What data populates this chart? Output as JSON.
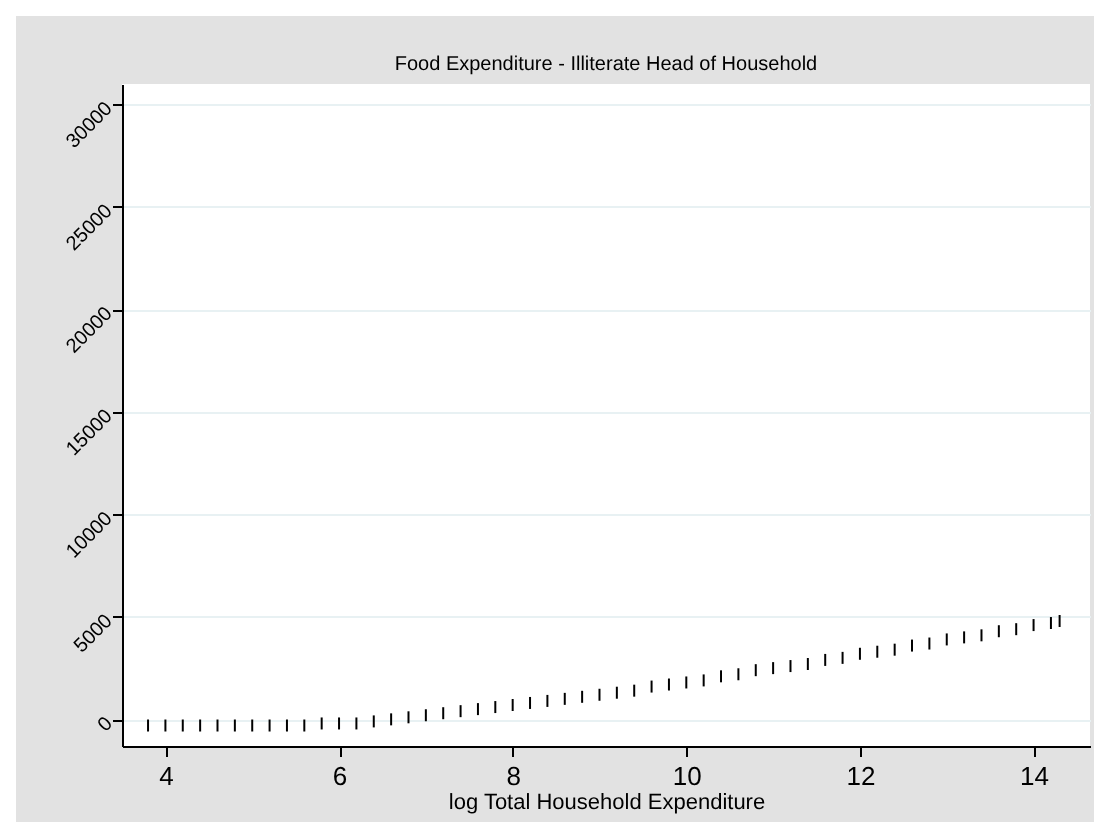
{
  "chart_data": {
    "type": "scatter",
    "title": "Food Expenditure - Illiterate Head of Household",
    "xlabel": "log Total Household Expenditure",
    "x": [
      3.8,
      4.0,
      4.2,
      4.4,
      4.6,
      4.8,
      5.0,
      5.2,
      5.4,
      5.6,
      5.8,
      6.0,
      6.2,
      6.4,
      6.6,
      6.8,
      7.0,
      7.2,
      7.4,
      7.6,
      7.8,
      8.0,
      8.2,
      8.4,
      8.6,
      8.8,
      9.0,
      9.2,
      9.4,
      9.6,
      9.8,
      10.0,
      10.2,
      10.4,
      10.6,
      10.8,
      11.0,
      11.2,
      11.4,
      11.6,
      11.8,
      12.0,
      12.2,
      12.4,
      12.6,
      12.8,
      13.0,
      13.2,
      13.4,
      13.6,
      13.8,
      14.0,
      14.2,
      14.3
    ],
    "series": [
      {
        "color": "#000000",
        "values": [
          -300,
          -300,
          -300,
          -300,
          -300,
          -300,
          -300,
          -300,
          -300,
          -300,
          -200,
          -200,
          -200,
          -100,
          0,
          100,
          200,
          300,
          400,
          500,
          600,
          700,
          800,
          900,
          1000,
          1100,
          1200,
          1300,
          1400,
          1600,
          1700,
          1800,
          1900,
          2100,
          2200,
          2400,
          2500,
          2600,
          2700,
          2900,
          3000,
          3200,
          3300,
          3400,
          3600,
          3700,
          3900,
          4000,
          4100,
          4300,
          4400,
          4600,
          4700,
          4800
        ]
      }
    ],
    "xlim": [
      3.5,
      14.65
    ],
    "ylim": [
      -1300,
      31000
    ],
    "xticks": [
      4,
      6,
      8,
      10,
      12,
      14
    ],
    "yticks": [
      0,
      5000,
      10000,
      15000,
      20000,
      25000,
      30000
    ],
    "grid": "y"
  }
}
